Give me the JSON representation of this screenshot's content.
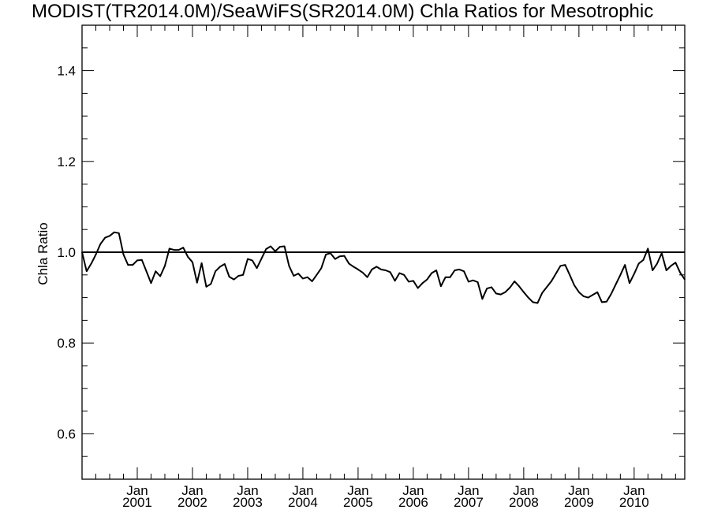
{
  "chart_data": {
    "type": "line",
    "title": "MODIST(TR2014.0M)/SeaWiFS(SR2014.0M)  Chla Ratios for Mesotrophic",
    "xlabel": "",
    "ylabel": "Chla Ratio",
    "xlim": [
      "2000-01",
      "2010-12"
    ],
    "ylim": [
      0.5,
      1.5
    ],
    "yticks": [
      0.6,
      0.8,
      1.0,
      1.2,
      1.4
    ],
    "ytick_labels": [
      "0.6",
      "0.8",
      "1.0",
      "1.2",
      "1.4"
    ],
    "xtick_months": [
      "Jan",
      "Jan",
      "Jan",
      "Jan",
      "Jan",
      "Jan",
      "Jan",
      "Jan",
      "Jan",
      "Jan"
    ],
    "xtick_years": [
      "2001",
      "2002",
      "2003",
      "2004",
      "2005",
      "2006",
      "2007",
      "2008",
      "2009",
      "2010"
    ],
    "xtick_dates": [
      "2001-01",
      "2002-01",
      "2003-01",
      "2004-01",
      "2005-01",
      "2006-01",
      "2007-01",
      "2008-01",
      "2009-01",
      "2010-01"
    ],
    "reference_line": 1.0,
    "grid": false,
    "legend": "none",
    "line_color": "#000000",
    "series": [
      {
        "x": [
          "2000-01",
          "2000-02",
          "2000-03",
          "2000-04",
          "2000-05",
          "2000-06",
          "2000-07",
          "2000-08",
          "2000-09",
          "2000-10",
          "2000-11",
          "2000-12",
          "2001-01",
          "2001-02",
          "2001-03",
          "2001-04",
          "2001-05",
          "2001-06",
          "2001-07",
          "2001-08",
          "2001-09",
          "2001-10",
          "2001-11",
          "2001-12",
          "2002-01",
          "2002-02",
          "2002-03",
          "2002-04",
          "2002-05",
          "2002-06",
          "2002-07",
          "2002-08",
          "2002-09",
          "2002-10",
          "2002-11",
          "2002-12",
          "2003-01",
          "2003-02",
          "2003-03",
          "2003-04",
          "2003-05",
          "2003-06",
          "2003-07",
          "2003-08",
          "2003-09",
          "2003-10",
          "2003-11",
          "2003-12",
          "2004-01",
          "2004-02",
          "2004-03",
          "2004-04",
          "2004-05",
          "2004-06",
          "2004-07",
          "2004-08",
          "2004-09",
          "2004-10",
          "2004-11",
          "2004-12",
          "2005-01",
          "2005-02",
          "2005-03",
          "2005-04",
          "2005-05",
          "2005-06",
          "2005-07",
          "2005-08",
          "2005-09",
          "2005-10",
          "2005-11",
          "2005-12",
          "2006-01",
          "2006-02",
          "2006-03",
          "2006-04",
          "2006-05",
          "2006-06",
          "2006-07",
          "2006-08",
          "2006-09",
          "2006-10",
          "2006-11",
          "2006-12",
          "2007-01",
          "2007-02",
          "2007-03",
          "2007-04",
          "2007-05",
          "2007-06",
          "2007-07",
          "2007-08",
          "2007-09",
          "2007-10",
          "2007-11",
          "2007-12",
          "2008-01",
          "2008-02",
          "2008-03",
          "2008-04",
          "2008-05",
          "2008-06",
          "2008-07",
          "2008-08",
          "2008-09",
          "2008-10",
          "2008-11",
          "2008-12",
          "2009-01",
          "2009-02",
          "2009-03",
          "2009-04",
          "2009-05",
          "2009-06",
          "2009-07",
          "2009-08",
          "2009-09",
          "2009-10",
          "2009-11",
          "2009-12",
          "2010-01",
          "2010-02",
          "2010-03",
          "2010-04",
          "2010-05",
          "2010-06",
          "2010-07",
          "2010-08",
          "2010-09",
          "2010-10",
          "2010-11",
          "2010-12"
        ],
        "values": [
          1.0,
          0.958,
          0.975,
          0.995,
          1.018,
          1.032,
          1.036,
          1.044,
          1.042,
          0.995,
          0.972,
          0.972,
          0.982,
          0.983,
          0.958,
          0.932,
          0.958,
          0.947,
          0.97,
          1.008,
          1.005,
          1.005,
          1.01,
          0.99,
          0.978,
          0.933,
          0.976,
          0.924,
          0.93,
          0.958,
          0.968,
          0.974,
          0.946,
          0.94,
          0.948,
          0.95,
          0.985,
          0.982,
          0.965,
          0.986,
          1.007,
          1.013,
          1.002,
          1.012,
          1.013,
          0.97,
          0.948,
          0.953,
          0.942,
          0.945,
          0.936,
          0.95,
          0.965,
          0.995,
          0.998,
          0.985,
          0.991,
          0.992,
          0.975,
          0.968,
          0.962,
          0.955,
          0.945,
          0.962,
          0.968,
          0.962,
          0.96,
          0.956,
          0.937,
          0.954,
          0.95,
          0.935,
          0.937,
          0.921,
          0.932,
          0.94,
          0.954,
          0.96,
          0.925,
          0.945,
          0.945,
          0.96,
          0.962,
          0.958,
          0.935,
          0.938,
          0.934,
          0.897,
          0.92,
          0.923,
          0.909,
          0.907,
          0.912,
          0.922,
          0.936,
          0.925,
          0.912,
          0.9,
          0.89,
          0.888,
          0.91,
          0.923,
          0.936,
          0.953,
          0.97,
          0.972,
          0.95,
          0.927,
          0.912,
          0.903,
          0.9,
          0.906,
          0.912,
          0.89,
          0.891,
          0.908,
          0.929,
          0.95,
          0.972,
          0.932,
          0.952,
          0.975,
          0.983,
          1.008,
          0.96,
          0.975,
          0.998,
          0.96,
          0.97,
          0.977,
          0.955,
          0.94
        ]
      }
    ]
  }
}
